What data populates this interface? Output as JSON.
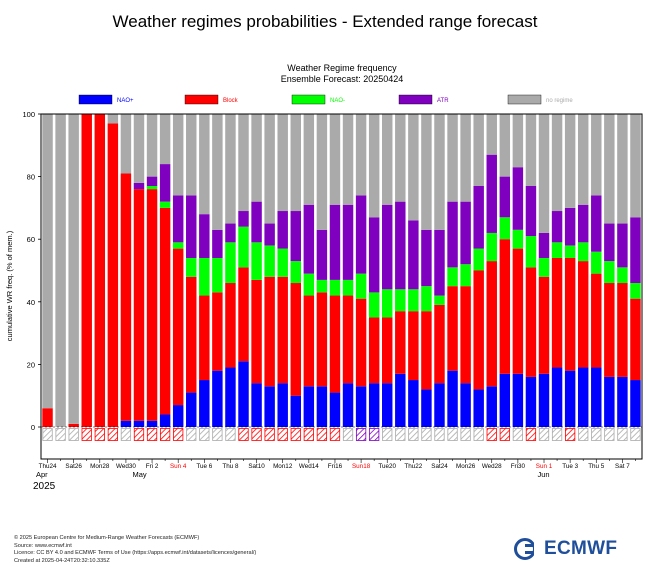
{
  "page_title": "Weather regimes probabilities - Extended range forecast",
  "chart_title_line1": "Weather Regime frequency",
  "chart_title_line2": "Ensemble Forecast: 20250424",
  "colors": {
    "NAO+": "#0000ff",
    "Block": "#ff0000",
    "NAO-": "#00ff00",
    "ATR": "#7f00bf",
    "no regime": "#aaaaaa",
    "hatch_grey": "#aaaaaa",
    "hatch_red": "#ff0000",
    "hatch_purple": "#7f00bf",
    "red_label": "#ff0000"
  },
  "chart_data": {
    "type": "bar",
    "stacked": true,
    "ylabel": "cumulative WR freq. (% of mem.)",
    "ylim": [
      0,
      100
    ],
    "yticks": [
      0,
      20,
      40,
      60,
      80,
      100
    ],
    "legend": [
      "NAO+",
      "Block",
      "NAO-",
      "ATR",
      "no regime"
    ],
    "legend_placement": "top",
    "x_month_labels": [
      {
        "day_index": 0,
        "text": "Apr"
      },
      {
        "day_index": 7,
        "text": "May"
      },
      {
        "day_index": 38,
        "text": "Jun"
      }
    ],
    "year_label": "2025",
    "x_tick_labels": [
      {
        "day_index": 0,
        "text": "Thu24",
        "red": false
      },
      {
        "day_index": 2,
        "text": "Sat26",
        "red": false
      },
      {
        "day_index": 4,
        "text": "Mon28",
        "red": false
      },
      {
        "day_index": 6,
        "text": "Wed30",
        "red": false
      },
      {
        "day_index": 8,
        "text": "Fri 2",
        "red": false
      },
      {
        "day_index": 10,
        "text": "Sun 4",
        "red": true
      },
      {
        "day_index": 12,
        "text": "Tue 6",
        "red": false
      },
      {
        "day_index": 14,
        "text": "Thu 8",
        "red": false
      },
      {
        "day_index": 16,
        "text": "Sat10",
        "red": false
      },
      {
        "day_index": 18,
        "text": "Mon12",
        "red": false
      },
      {
        "day_index": 20,
        "text": "Wed14",
        "red": false
      },
      {
        "day_index": 22,
        "text": "Fri16",
        "red": false
      },
      {
        "day_index": 24,
        "text": "Sun18",
        "red": true
      },
      {
        "day_index": 26,
        "text": "Tue20",
        "red": false
      },
      {
        "day_index": 28,
        "text": "Thu22",
        "red": false
      },
      {
        "day_index": 30,
        "text": "Sat24",
        "red": false
      },
      {
        "day_index": 32,
        "text": "Mon26",
        "red": false
      },
      {
        "day_index": 34,
        "text": "Wed28",
        "red": false
      },
      {
        "day_index": 36,
        "text": "Fri30",
        "red": false
      },
      {
        "day_index": 38,
        "text": "Sun 1",
        "red": true
      },
      {
        "day_index": 40,
        "text": "Tue 3",
        "red": false
      },
      {
        "day_index": 42,
        "text": "Thu 5",
        "red": false
      },
      {
        "day_index": 44,
        "text": "Sat 7",
        "red": false
      }
    ],
    "days": 46,
    "series": [
      {
        "name": "NAO+",
        "values": [
          0,
          0,
          0,
          0,
          0,
          0,
          2,
          2,
          2,
          4,
          7,
          11,
          15,
          18,
          19,
          21,
          14,
          13,
          14,
          10,
          13,
          13,
          11,
          14,
          13,
          14,
          14,
          17,
          15,
          12,
          14,
          18,
          14,
          12,
          13,
          17,
          17,
          16,
          17,
          19,
          18,
          19,
          19,
          16,
          16,
          15
        ]
      },
      {
        "name": "Block",
        "values": [
          6,
          0,
          1,
          100,
          100,
          97,
          79,
          74,
          74,
          66,
          50,
          37,
          27,
          25,
          27,
          30,
          33,
          35,
          34,
          36,
          29,
          30,
          31,
          28,
          28,
          21,
          21,
          20,
          22,
          25,
          25,
          27,
          31,
          38,
          40,
          43,
          40,
          35,
          31,
          35,
          36,
          34,
          30,
          30,
          30,
          26
        ]
      },
      {
        "name": "NAO-",
        "values": [
          0,
          0,
          0,
          0,
          0,
          0,
          0,
          0,
          1,
          2,
          2,
          6,
          12,
          11,
          13,
          13,
          12,
          10,
          9,
          7,
          7,
          4,
          5,
          5,
          8,
          8,
          9,
          7,
          7,
          8,
          3,
          6,
          7,
          7,
          9,
          7,
          6,
          10,
          6,
          5,
          4,
          6,
          7,
          7,
          5,
          5
        ]
      },
      {
        "name": "ATR",
        "values": [
          0,
          0,
          0,
          0,
          0,
          0,
          0,
          2,
          3,
          12,
          15,
          20,
          14,
          9,
          6,
          5,
          13,
          7,
          12,
          16,
          22,
          16,
          24,
          24,
          25,
          24,
          27,
          28,
          22,
          18,
          21,
          21,
          20,
          20,
          25,
          13,
          20,
          16,
          8,
          10,
          12,
          12,
          18,
          12,
          14,
          21
        ]
      },
      {
        "name": "no regime",
        "values": [
          94,
          100,
          99,
          0,
          0,
          3,
          19,
          22,
          20,
          16,
          26,
          26,
          32,
          37,
          35,
          31,
          28,
          35,
          31,
          31,
          29,
          37,
          29,
          29,
          26,
          33,
          29,
          28,
          34,
          37,
          37,
          28,
          28,
          23,
          13,
          20,
          17,
          23,
          38,
          31,
          30,
          29,
          26,
          35,
          35,
          33
        ]
      }
    ],
    "bottom_strip": [
      "g",
      "g",
      "g",
      "r",
      "r",
      "r",
      "g",
      "r",
      "r",
      "r",
      "r",
      "g",
      "g",
      "g",
      "g",
      "r",
      "r",
      "r",
      "r",
      "r",
      "r",
      "r",
      "r",
      "g",
      "p",
      "p",
      "g",
      "g",
      "g",
      "g",
      "g",
      "g",
      "g",
      "g",
      "r",
      "r",
      "g",
      "r",
      "g",
      "g",
      "r",
      "g",
      "g",
      "g",
      "g",
      "g"
    ]
  },
  "footer": {
    "line1": "© 2025 European Centre for Medium-Range Weather Forecasts (ECMWF)",
    "line2": "Source: www.ecmwf.int",
    "line3": "Licence: CC BY 4.0 and ECMWF Terms of Use (https://apps.ecmwf.int/datasets/licences/general/)",
    "line4": "Created at 2025-04-24T20:32:10.335Z"
  },
  "logo_text": "ECMWF"
}
